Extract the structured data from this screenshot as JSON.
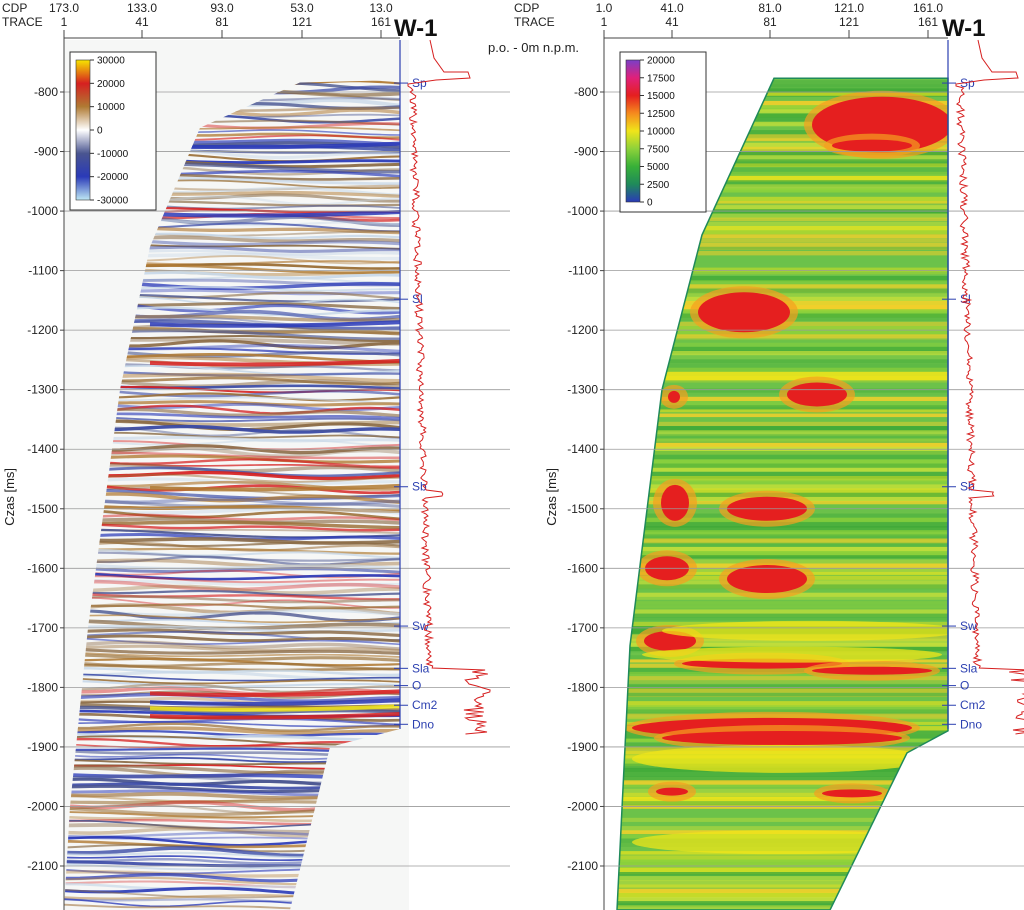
{
  "chart_data": [
    {
      "type": "heatmap",
      "title": "W-1",
      "ylabel": "Czas [ms]",
      "ylim": [
        -2170,
        -740
      ],
      "yticks": [
        -800,
        -900,
        -1000,
        -1100,
        -1200,
        -1300,
        -1400,
        -1500,
        -1600,
        -1700,
        -1800,
        -1900,
        -2000,
        -2100
      ],
      "header_rows": [
        "CDP",
        "TRACE"
      ],
      "cdp_ticks": [
        "173.0",
        "133.0",
        "93.0",
        "53.0",
        "13.0"
      ],
      "trace_ticks": [
        "1",
        "41",
        "81",
        "121",
        "161"
      ],
      "colorbar": {
        "ticks": [
          "30000",
          "20000",
          "10000",
          "0",
          "-10000",
          "-20000",
          "-30000"
        ],
        "colors": [
          "#f7e600",
          "#d62020",
          "#b07a33",
          "#ffffff",
          "#4a5590",
          "#2a3ab8",
          "#bfe8f4"
        ]
      },
      "well": "W-1",
      "markers": [
        {
          "name": "Sp",
          "t": -785
        },
        {
          "name": "Sl",
          "t": -1148
        },
        {
          "name": "Sb",
          "t": -1463
        },
        {
          "name": "Sw",
          "t": -1697
        },
        {
          "name": "Sla",
          "t": -1768
        },
        {
          "name": "O",
          "t": -1797
        },
        {
          "name": "Cm2",
          "t": -1830
        },
        {
          "name": "Dno",
          "t": -1862
        }
      ]
    },
    {
      "type": "heatmap",
      "title": "W-1",
      "ylabel": "Czas [ms]",
      "ylim": [
        -2170,
        -740
      ],
      "yticks": [
        -800,
        -900,
        -1000,
        -1100,
        -1200,
        -1300,
        -1400,
        -1500,
        -1600,
        -1700,
        -1800,
        -1900,
        -2000,
        -2100
      ],
      "header_rows": [
        "CDP",
        "TRACE"
      ],
      "cdp_ticks": [
        "1.0",
        "41.0",
        "81.0",
        "121.0",
        "161.0"
      ],
      "trace_ticks": [
        "1",
        "41",
        "81",
        "121",
        "161"
      ],
      "colorbar": {
        "ticks": [
          "20000",
          "17500",
          "15000",
          "12500",
          "10000",
          "7500",
          "5000",
          "2500",
          "0"
        ],
        "colors": [
          "#7a3fc8",
          "#e0207a",
          "#e51f1f",
          "#f58a1e",
          "#f0e51a",
          "#8ed23a",
          "#38b038",
          "#1f8a5a",
          "#2a3ab8"
        ]
      },
      "well": "W-1",
      "datum": "p.o. - 0m n.p.m.",
      "markers": [
        {
          "name": "Sp",
          "t": -785
        },
        {
          "name": "Sl",
          "t": -1148
        },
        {
          "name": "Sb",
          "t": -1463
        },
        {
          "name": "Sw",
          "t": -1697
        },
        {
          "name": "Sla",
          "t": -1768
        },
        {
          "name": "O",
          "t": -1797
        },
        {
          "name": "Cm2",
          "t": -1830
        },
        {
          "name": "Dno",
          "t": -1862
        }
      ]
    }
  ]
}
